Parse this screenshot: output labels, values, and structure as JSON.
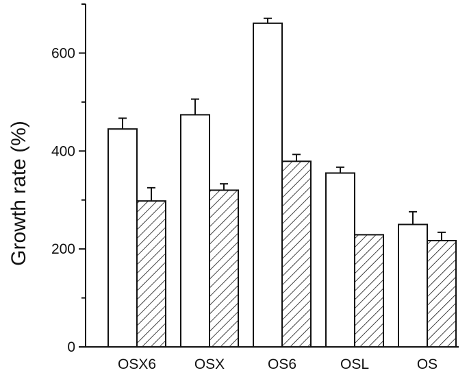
{
  "chart_data": {
    "type": "bar",
    "title": "",
    "xlabel": "",
    "ylabel": "Growth rate (%)",
    "ylim": [
      0,
      700
    ],
    "yticks": [
      0,
      200,
      400,
      600
    ],
    "categories": [
      "OSX6",
      "OSX",
      "OS6",
      "OSL",
      "OS"
    ],
    "grid": false,
    "series": [
      {
        "fill": "open",
        "values": [
          445,
          474,
          661,
          355,
          250
        ],
        "errors": [
          22,
          32,
          10,
          12,
          26
        ]
      },
      {
        "fill": "hatched",
        "values": [
          298,
          320,
          379,
          229,
          217
        ],
        "errors": [
          27,
          13,
          14,
          0,
          17
        ]
      }
    ]
  }
}
